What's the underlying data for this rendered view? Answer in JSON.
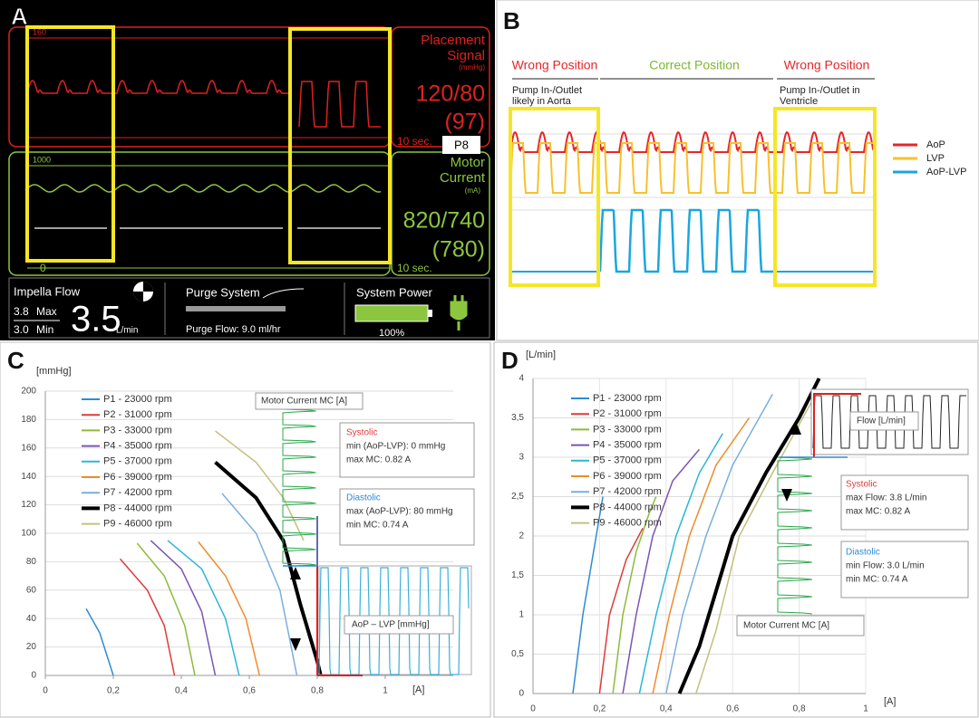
{
  "panel_a": {
    "label": "A",
    "placement": {
      "scale": "160",
      "title": [
        "Placement",
        "Signal"
      ],
      "unit": "(mmHg)",
      "value": "120/80",
      "mean": "(97)",
      "time": "10 sec."
    },
    "mode": "P8",
    "motor": {
      "scale_top": "1000",
      "scale_bottom": "0",
      "title": [
        "Motor",
        "Current"
      ],
      "unit": "(mA)",
      "value": "820/740",
      "mean": "(780)",
      "time": "10 sec."
    },
    "flow": {
      "title": "Impella  Flow",
      "max": "3.8",
      "max_label": "Max",
      "min": "3.0",
      "min_label": "Min",
      "value": "3.5",
      "unit": "L/min"
    },
    "purge": {
      "title": "Purge System",
      "flow": "Purge Flow: 9.0  ml/hr"
    },
    "power": {
      "title": "System Power",
      "level": "100%"
    }
  },
  "panel_b": {
    "label": "B",
    "positions": [
      "Wrong Position",
      "Correct Position",
      "Wrong Position"
    ],
    "notes": [
      [
        "Pump In-/Outlet",
        "likely in Aorta"
      ],
      [
        "Pump In-/Outlet in",
        "Ventricle"
      ]
    ],
    "legend": [
      {
        "name": "AoP",
        "color": "#e8262b"
      },
      {
        "name": "LVP",
        "color": "#f7c12d"
      },
      {
        "name": "AoP-LVP",
        "color": "#1aa6e0"
      }
    ]
  },
  "chart_data": [
    {
      "type": "line",
      "label": "C",
      "y_label": "[mmHg]",
      "x_label": "[A]",
      "xlim": [
        0,
        1.2
      ],
      "ylim": [
        0,
        200
      ],
      "xticks": [
        0,
        {
          "value": 0.2,
          "label": "0,2"
        },
        {
          "value": 0.4,
          "label": "0,4"
        },
        {
          "value": 0.6,
          "label": "0,6"
        },
        {
          "value": 0.8,
          "label": "0,8"
        },
        1
      ],
      "yticks": [
        0,
        20,
        40,
        60,
        80,
        100,
        120,
        140,
        160,
        180,
        200
      ],
      "grid": true,
      "series": [
        {
          "name": "P1 - 23000 rpm",
          "color": "#2e8bd6",
          "x": [
            0.12,
            0.16,
            0.2
          ],
          "values": [
            47,
            30,
            0
          ]
        },
        {
          "name": "P2 - 31000 rpm",
          "color": "#e03a3a",
          "x": [
            0.22,
            0.3,
            0.35,
            0.38
          ],
          "values": [
            82,
            60,
            35,
            0
          ]
        },
        {
          "name": "P3 - 33000 rpm",
          "color": "#8dbb3a",
          "x": [
            0.27,
            0.35,
            0.41,
            0.44
          ],
          "values": [
            93,
            70,
            35,
            0
          ]
        },
        {
          "name": "P4 - 35000 rpm",
          "color": "#7b55b0",
          "x": [
            0.31,
            0.4,
            0.46,
            0.5
          ],
          "values": [
            95,
            75,
            45,
            0
          ]
        },
        {
          "name": "P5 - 37000 rpm",
          "color": "#2cb5d8",
          "x": [
            0.36,
            0.46,
            0.53,
            0.57
          ],
          "values": [
            95,
            75,
            40,
            0
          ]
        },
        {
          "name": "P6 - 39000 rpm",
          "color": "#f08a2a",
          "x": [
            0.45,
            0.53,
            0.59,
            0.63
          ],
          "values": [
            94,
            70,
            40,
            0
          ]
        },
        {
          "name": "P7 - 42000 rpm",
          "color": "#79aee0",
          "x": [
            0.52,
            0.62,
            0.69,
            0.74
          ],
          "values": [
            128,
            100,
            60,
            0
          ]
        },
        {
          "name": "P8 - 44000 rpm",
          "color": "#000000",
          "width": 4,
          "x": [
            0.5,
            0.62,
            0.7,
            0.75,
            0.8,
            0.81
          ],
          "values": [
            150,
            125,
            95,
            50,
            10,
            0
          ]
        },
        {
          "name": "P9 - 46000 rpm",
          "color": "#c3c07e",
          "x": [
            0.5,
            0.62,
            0.7,
            0.76
          ],
          "values": [
            172,
            150,
            125,
            95
          ]
        }
      ],
      "annotations": [
        "Motor Current MC  [A]",
        "Systolic",
        "min (AoP-LVP):   0 mmHg",
        "max MC:            0.82 A",
        "Diastolic",
        "max (AoP-LVP): 80 mmHg",
        "min MC:             0.74 A",
        "AoP – LVP [mmHg]"
      ]
    },
    {
      "type": "line",
      "label": "D",
      "y_label": "[L/min]",
      "x_label": "[A]",
      "xlim": [
        0,
        1
      ],
      "ylim": [
        0,
        4
      ],
      "xticks": [
        0,
        {
          "value": 0.2,
          "label": "0,2"
        },
        {
          "value": 0.4,
          "label": "0,4"
        },
        {
          "value": 0.6,
          "label": "0,6"
        },
        {
          "value": 0.8,
          "label": "0,8"
        },
        1
      ],
      "yticks": [
        0,
        {
          "value": 0.5,
          "label": "0,5"
        },
        1,
        {
          "value": 1.5,
          "label": "1,5"
        },
        2,
        {
          "value": 2.5,
          "label": "2,5"
        },
        3,
        {
          "value": 3.5,
          "label": "3,5"
        },
        4
      ],
      "grid": true,
      "series": [
        {
          "name": "P1 - 23000 rpm",
          "color": "#2e8bd6",
          "x": [
            0.12,
            0.15,
            0.19,
            0.21
          ],
          "values": [
            0,
            1,
            2,
            2.5
          ]
        },
        {
          "name": "P2 - 31000 rpm",
          "color": "#e03a3a",
          "x": [
            0.2,
            0.23,
            0.28,
            0.33
          ],
          "values": [
            0,
            1,
            1.7,
            2.1
          ]
        },
        {
          "name": "P3 - 33000 rpm",
          "color": "#8dbb3a",
          "x": [
            0.24,
            0.27,
            0.31,
            0.35,
            0.37
          ],
          "values": [
            0,
            1,
            1.8,
            2.3,
            2.5
          ]
        },
        {
          "name": "P4 - 35000 rpm",
          "color": "#7b55b0",
          "x": [
            0.27,
            0.31,
            0.36,
            0.42,
            0.5
          ],
          "values": [
            0,
            1,
            2,
            2.7,
            3.1
          ]
        },
        {
          "name": "P5 - 37000 rpm",
          "color": "#2cb5d8",
          "x": [
            0.32,
            0.37,
            0.43,
            0.5,
            0.57
          ],
          "values": [
            0,
            1,
            2,
            2.8,
            3.3
          ]
        },
        {
          "name": "P6 - 39000 rpm",
          "color": "#f08a2a",
          "x": [
            0.36,
            0.41,
            0.47,
            0.55,
            0.65
          ],
          "values": [
            0,
            1,
            2,
            2.9,
            3.5
          ]
        },
        {
          "name": "P7 - 42000 rpm",
          "color": "#79aee0",
          "x": [
            0.4,
            0.45,
            0.52,
            0.6,
            0.72
          ],
          "values": [
            0,
            1,
            2,
            2.9,
            3.8
          ]
        },
        {
          "name": "P8 - 44000 rpm",
          "color": "#000000",
          "width": 4,
          "x": [
            0.44,
            0.5,
            0.55,
            0.6,
            0.7,
            0.8,
            0.86
          ],
          "values": [
            0,
            0.6,
            1.3,
            2,
            2.8,
            3.5,
            4
          ]
        },
        {
          "name": "P9 - 46000 rpm",
          "color": "#c3c07e",
          "x": [
            0.49,
            0.55,
            0.62,
            0.72,
            0.85
          ],
          "values": [
            0,
            0.8,
            2,
            2.8,
            3.8
          ]
        }
      ],
      "annotations": [
        "Flow  [L/min]",
        "Systolic",
        "max Flow:  3.8 L/min",
        "max MC:     0.82 A",
        "Diastolic",
        "min Flow:   3.0 L/min",
        "min MC:      0.74 A",
        "Motor Current MC [A]"
      ]
    }
  ]
}
